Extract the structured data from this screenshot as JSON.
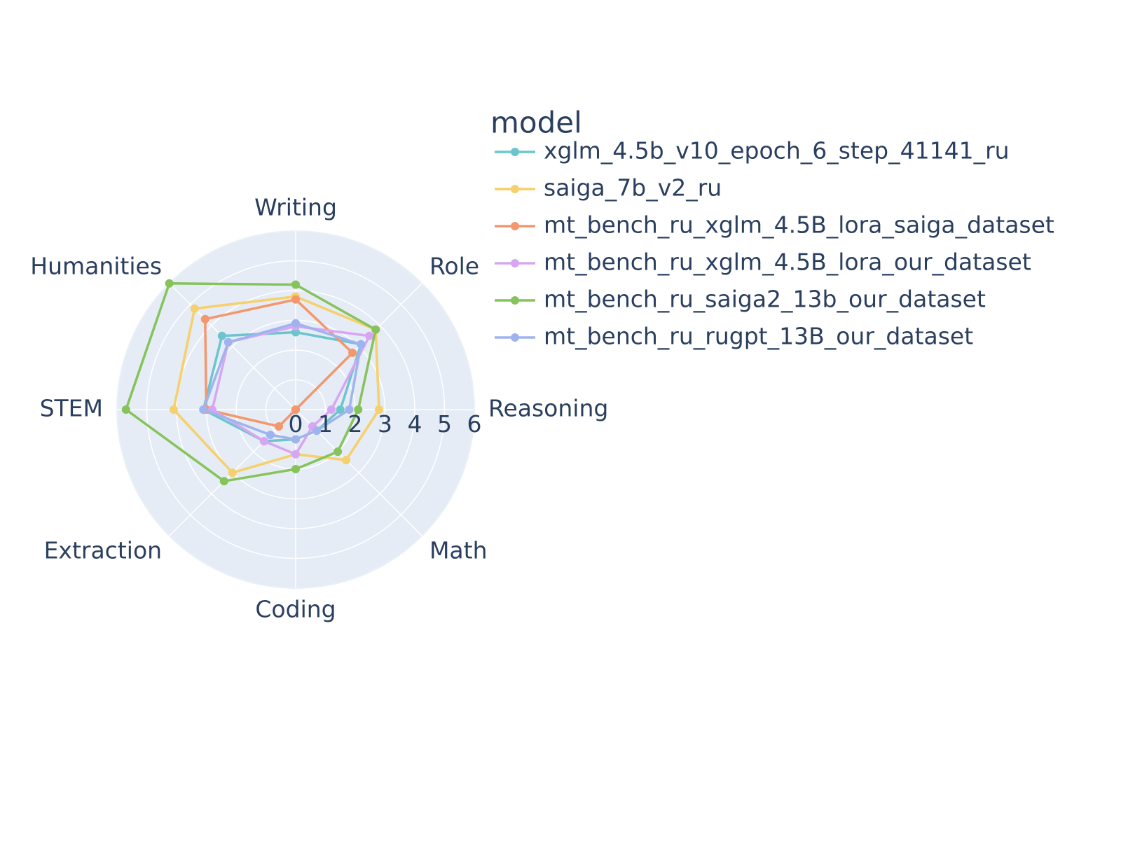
{
  "chart_data": {
    "type": "radar",
    "categories": [
      "Writing",
      "Role",
      "Reasoning",
      "Math",
      "Coding",
      "Extraction",
      "STEM",
      "Humanities"
    ],
    "radial_range": [
      0,
      6
    ],
    "radial_ticks": [
      "0",
      "1",
      "2",
      "3",
      "4",
      "5",
      "6"
    ],
    "grid": true,
    "legend": {
      "title": "model",
      "placement": "right"
    },
    "series": [
      {
        "name": "xglm_4.5b_v10_epoch_6_step_41141_ru",
        "color": "#6cc5cc",
        "values": [
          2.6,
          3.1,
          1.5,
          1.0,
          1.0,
          1.5,
          3.1,
          3.5
        ]
      },
      {
        "name": "saiga_7b_v2_ru",
        "color": "#f5d06b",
        "values": [
          3.8,
          3.8,
          2.8,
          2.4,
          1.5,
          3.0,
          4.1,
          4.8
        ]
      },
      {
        "name": "mt_bench_ru_xglm_4.5B_lora_saiga_dataset",
        "color": "#f4976c",
        "values": [
          3.7,
          2.7,
          0.0,
          0.0,
          0.0,
          0.8,
          3.0,
          4.3
        ]
      },
      {
        "name": "mt_bench_ru_xglm_4.5B_lora_our_dataset",
        "color": "#d7a6f2",
        "values": [
          2.8,
          3.5,
          1.2,
          0.8,
          1.5,
          1.5,
          2.8,
          3.2
        ]
      },
      {
        "name": "mt_bench_ru_saiga2_13b_our_dataset",
        "color": "#86c35b",
        "values": [
          4.2,
          3.8,
          2.1,
          2.0,
          2.0,
          3.4,
          5.7,
          6.0
        ]
      },
      {
        "name": "mt_bench_ru_rugpt_13B_our_dataset",
        "color": "#9fb4ee",
        "values": [
          2.9,
          3.1,
          1.8,
          1.0,
          1.0,
          1.2,
          3.1,
          3.2
        ]
      }
    ]
  }
}
